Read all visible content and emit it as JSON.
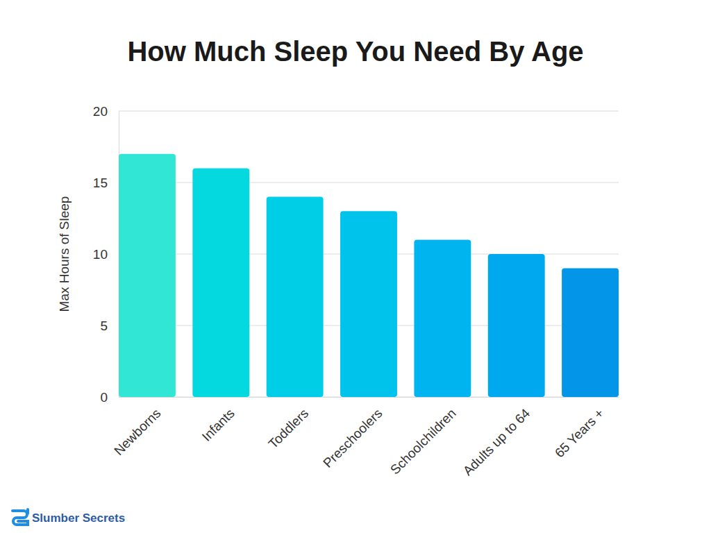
{
  "chart_data": {
    "type": "bar",
    "title": "How Much Sleep You Need By Age",
    "y_label": "Max Hours of Sleep",
    "categories": [
      "Newborns",
      "Infants",
      "Toddlers",
      "Preschoolers",
      "Schoolchildren",
      "Adults up to 64",
      "65 Years +"
    ],
    "values": [
      17,
      16,
      14,
      13,
      11,
      10,
      9
    ],
    "colors": [
      "#32e6d6",
      "#05d9e0",
      "#00cde6",
      "#00c3ec",
      "#00b4f0",
      "#00a8f0",
      "#0396e8"
    ],
    "ylim": [
      0,
      20
    ],
    "yticks": [
      0,
      5,
      10,
      15,
      20
    ],
    "grid": true,
    "annotations": [
      "Slumber Secrets"
    ]
  }
}
